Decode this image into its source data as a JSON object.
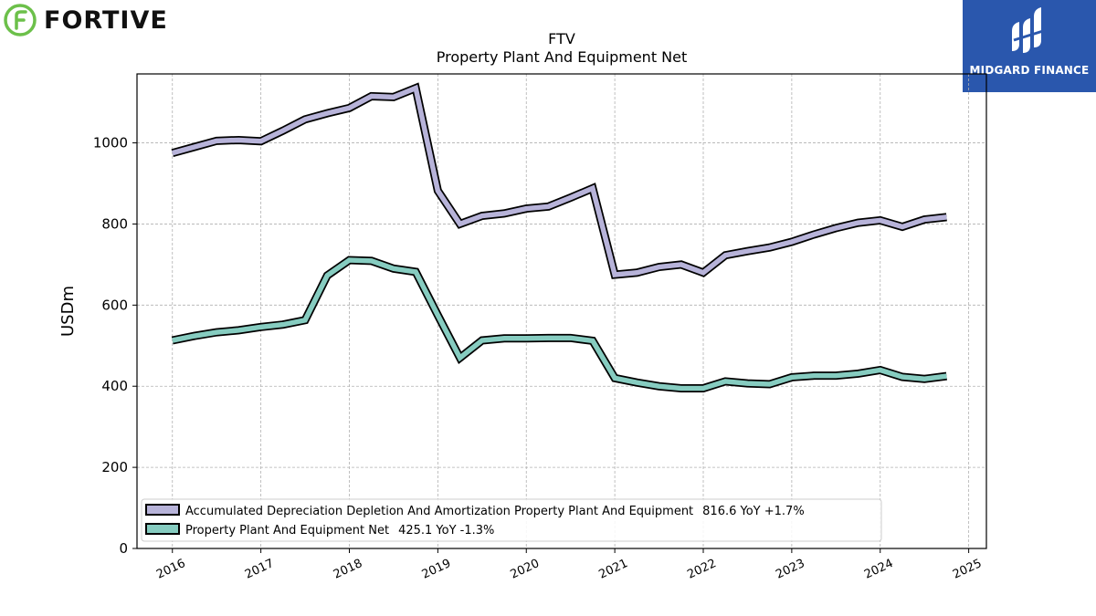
{
  "brand": {
    "name": "FORTIVE",
    "icon": "fortive-logo-icon",
    "color": "#6cc04a"
  },
  "badge": {
    "name": "MIDGARD FINANCE",
    "icon": "midgard-logo-icon",
    "color": "#2a57ad"
  },
  "chart_data": {
    "type": "line",
    "title": "FTV",
    "subtitle": "Property Plant And Equipment Net",
    "xlabel": "",
    "ylabel": "USDm",
    "ylim": [
      0,
      1170
    ],
    "xlim": [
      2015.6,
      2025.2
    ],
    "x_ticks": [
      "2016",
      "2017",
      "2018",
      "2019",
      "2020",
      "2021",
      "2022",
      "2023",
      "2024",
      "2025"
    ],
    "y_ticks": [
      "0",
      "200",
      "400",
      "600",
      "800",
      "1000"
    ],
    "grid": true,
    "legend_position": "lower-left",
    "x": [
      2016.0,
      2016.25,
      2016.5,
      2016.75,
      2017.0,
      2017.25,
      2017.5,
      2017.75,
      2018.0,
      2018.25,
      2018.5,
      2018.75,
      2019.0,
      2019.25,
      2019.5,
      2019.75,
      2020.0,
      2020.25,
      2020.5,
      2020.75,
      2021.0,
      2021.25,
      2021.5,
      2021.75,
      2022.0,
      2022.25,
      2022.5,
      2022.75,
      2023.0,
      2023.25,
      2023.5,
      2023.75,
      2024.0,
      2024.25,
      2024.5,
      2024.75
    ],
    "series": [
      {
        "name": "Accumulated Depreciation Depletion And Amortization Property Plant And Equipment",
        "legend_value": "816.6 YoY +1.7%",
        "color": "#b7b3d9",
        "values": [
          975,
          990,
          1005,
          1007,
          1004,
          1030,
          1058,
          1073,
          1086,
          1115,
          1113,
          1135,
          882,
          800,
          820,
          826,
          838,
          843,
          865,
          888,
          675,
          680,
          694,
          700,
          680,
          723,
          733,
          742,
          756,
          774,
          790,
          803,
          809,
          793,
          811,
          817
        ]
      },
      {
        "name": "Property Plant And Equipment Net",
        "legend_value": "425.1 YoY -1.3%",
        "color": "#86ccc0",
        "values": [
          513,
          524,
          533,
          538,
          546,
          552,
          563,
          673,
          711,
          709,
          690,
          682,
          575,
          470,
          513,
          518,
          518,
          519,
          519,
          512,
          420,
          409,
          400,
          395,
          395,
          412,
          407,
          405,
          422,
          426,
          426,
          431,
          440,
          423,
          418,
          425
        ]
      }
    ]
  }
}
